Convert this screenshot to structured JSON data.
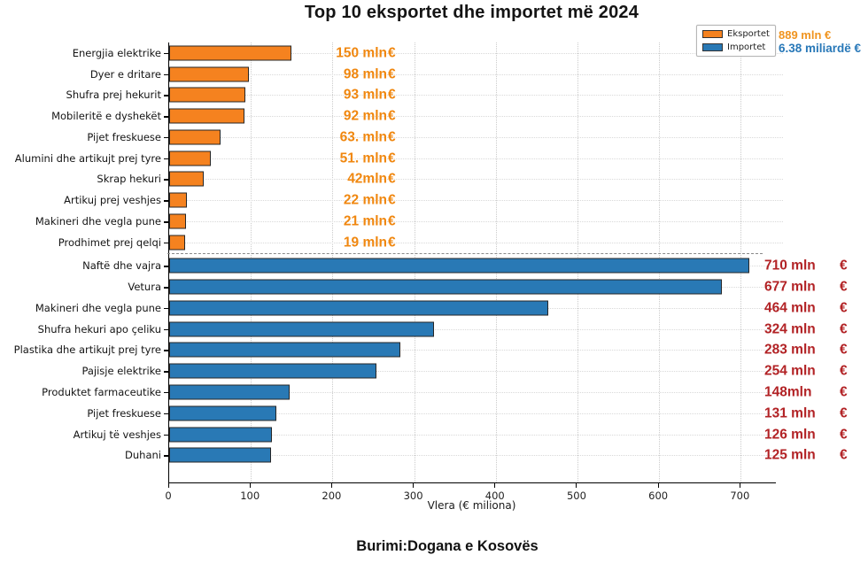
{
  "title": "Top 10 eksportet dhe importet më 2024",
  "source": "Burimi:Dogana e Kosovës",
  "legend": {
    "eksportet_label": "Eksportet",
    "importet_label": "Importet",
    "eksportet_total": "889 mln €",
    "importet_total": "6.38 miliardë €"
  },
  "colors": {
    "export_bar": "#F5821F",
    "import_bar": "#2979B5",
    "export_value_text": "#F0870F",
    "import_value_text": "#B22225",
    "bar_edge": "#262626",
    "grid": "#cbcbcb"
  },
  "chart_data": {
    "type": "bar",
    "orientation": "horizontal",
    "title": "Top 10 eksportet dhe importet më 2024",
    "xlabel": "Vlera (€ miliona)",
    "x_ticks": [
      0,
      100,
      200,
      300,
      400,
      500,
      600,
      700
    ],
    "xlim": [
      0,
      743
    ],
    "grid": true,
    "legend_position": "top-right",
    "currency_symbol": "€",
    "source": "Burimi:Dogana e Kosovës",
    "series": [
      {
        "name": "Eksportet",
        "color": "#F5821F",
        "total_label": "889 mln €",
        "items": [
          {
            "label": "Energjia elektrike",
            "value": 150,
            "value_label": "150 mln"
          },
          {
            "label": "Dyer e dritare",
            "value": 98,
            "value_label": "98 mln"
          },
          {
            "label": "Shufra prej hekurit",
            "value": 93,
            "value_label": "93 mln"
          },
          {
            "label": "Mobileritë e dyshekët",
            "value": 92,
            "value_label": "92 mln"
          },
          {
            "label": "Pijet freskuese",
            "value": 63,
            "value_label": "63. mln"
          },
          {
            "label": "Alumini dhe artikujt prej tyre",
            "value": 51,
            "value_label": "51. mln"
          },
          {
            "label": "Skrap hekuri",
            "value": 42,
            "value_label": "42mln"
          },
          {
            "label": "Artikuj prej veshjes",
            "value": 22,
            "value_label": "22 mln"
          },
          {
            "label": "Makineri dhe vegla pune",
            "value": 21,
            "value_label": "21 mln"
          },
          {
            "label": "Prodhimet prej qelqi",
            "value": 19,
            "value_label": "19 mln"
          }
        ]
      },
      {
        "name": "Importet",
        "color": "#2979B5",
        "total_label": "6.38 miliardë €",
        "items": [
          {
            "label": "Naftë dhe vajra",
            "value": 710,
            "value_label": "710 mln"
          },
          {
            "label": "Vetura",
            "value": 677,
            "value_label": "677 mln"
          },
          {
            "label": "Makineri dhe vegla pune",
            "value": 464,
            "value_label": "464 mln"
          },
          {
            "label": "Shufra hekuri apo çeliku",
            "value": 324,
            "value_label": "324 mln"
          },
          {
            "label": "Plastika dhe artikujt prej tyre",
            "value": 283,
            "value_label": "283 mln"
          },
          {
            "label": "Pajisje elektrike",
            "value": 254,
            "value_label": "254 mln"
          },
          {
            "label": "Produktet farmaceutike",
            "value": 148,
            "value_label": "148mln"
          },
          {
            "label": "Pijet freskuese",
            "value": 131,
            "value_label": "131 mln"
          },
          {
            "label": "Artikuj të veshjes",
            "value": 126,
            "value_label": "126 mln"
          },
          {
            "label": "Duhani",
            "value": 125,
            "value_label": "125 mln"
          }
        ]
      }
    ]
  }
}
